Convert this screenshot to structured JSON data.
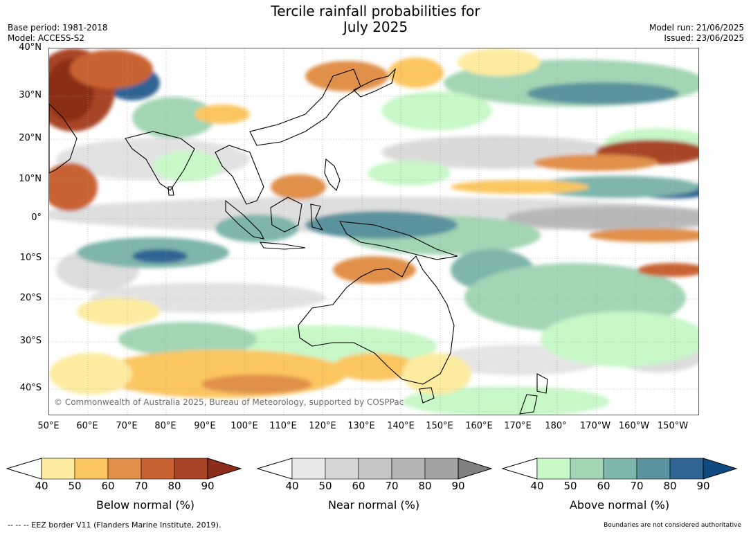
{
  "title_line1": "Tercile rainfall probabilities for",
  "title_line2": "July 2025",
  "base_period": "Base period: 1981-2018",
  "model": "Model: ACCESS-S2",
  "model_run": "Model run: 21/06/2025",
  "issued": "Issued: 23/06/2025",
  "copyright": "© Commonwealth of Australia 2025, Bureau of Meteorology, supported by COSPPac",
  "lat_labels": [
    "40°N",
    "30°N",
    "20°N",
    "10°N",
    "0°",
    "10°S",
    "20°S",
    "30°S",
    "40°S"
  ],
  "lon_labels": [
    "50°E",
    "60°E",
    "70°E",
    "80°E",
    "90°E",
    "100°E",
    "110°E",
    "120°E",
    "130°E",
    "140°E",
    "150°E",
    "160°E",
    "170°E",
    "180°",
    "170°W",
    "160°W",
    "150°W"
  ],
  "colorbars": [
    {
      "label": "Below normal (%)",
      "ticks": [
        "40",
        "50",
        "60",
        "70",
        "80",
        "90"
      ],
      "colors": [
        "#ffffff",
        "#fdeba0",
        "#fbc661",
        "#e0904a",
        "#c96232",
        "#a84425",
        "#8b2d19"
      ]
    },
    {
      "label": "Near normal (%)",
      "ticks": [
        "40",
        "50",
        "60",
        "70",
        "80",
        "90"
      ],
      "colors": [
        "#ffffff",
        "#e8e8e8",
        "#d6d6d6",
        "#c6c6c6",
        "#b4b4b4",
        "#a2a2a2",
        "#808080"
      ]
    },
    {
      "label": "Above normal (%)",
      "ticks": [
        "40",
        "50",
        "60",
        "70",
        "80",
        "90"
      ],
      "colors": [
        "#ffffff",
        "#c8f7c8",
        "#a2d5b4",
        "#7eb5ac",
        "#5a929e",
        "#2f6493",
        "#0f4a80"
      ]
    }
  ],
  "footer_left": "--  --  -- EEZ border V11 (Flanders Marine Institute, 2019).",
  "footer_right": "Boundaries are not considered authoritative"
}
